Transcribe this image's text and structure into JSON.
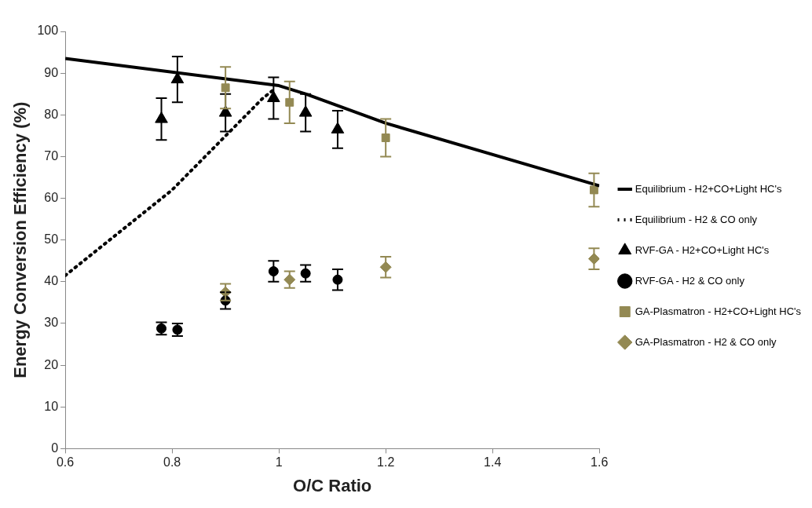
{
  "chart_data": {
    "type": "scatter",
    "xlabel": "O/C Ratio",
    "ylabel": "Energy Conversion Efficiency (%)",
    "xlim": [
      0.6,
      1.6
    ],
    "xticks": [
      {
        "value": 0.6,
        "label": "0.6"
      },
      {
        "value": 0.8,
        "label": "0.8"
      },
      {
        "value": 1,
        "label": "1"
      },
      {
        "value": 1.2,
        "label": "1.2"
      },
      {
        "value": 1.4,
        "label": "1.4"
      },
      {
        "value": 1.6,
        "label": "1.6"
      }
    ],
    "ylim": [
      0,
      100
    ],
    "yticks": [
      0,
      10,
      20,
      30,
      40,
      50,
      60,
      70,
      80,
      90,
      100
    ],
    "grid": false,
    "legend": "right",
    "series": [
      {
        "name": "Equilibrium - H2+CO+Light HC's",
        "type": "line",
        "color": "#000000",
        "marker": "none",
        "line_style": "solid",
        "x": [
          0.6,
          1.0,
          1.05,
          1.2,
          1.6
        ],
        "values": [
          93.5,
          87,
          85,
          78,
          63
        ]
      },
      {
        "name": "Equilibrium - H2 & CO only",
        "type": "line",
        "color": "#000000",
        "marker": "none",
        "line_style": "dotted",
        "x": [
          0.6,
          0.8,
          0.97,
          0.99
        ],
        "values": [
          41.5,
          62,
          84,
          86
        ]
      },
      {
        "name": "RVF-GA - H2+CO+Light HC's",
        "type": "scatter",
        "color": "#000000",
        "marker": "triangle",
        "x": [
          0.78,
          0.81,
          0.9,
          0.99,
          1.05,
          1.11
        ],
        "values": [
          79,
          88.5,
          80.5,
          84,
          80.5,
          76.5
        ],
        "errors": [
          5,
          5.5,
          4.5,
          5,
          4.5,
          4.5
        ]
      },
      {
        "name": "RVF-GA - H2 & CO only",
        "type": "scatter",
        "color": "#000000",
        "marker": "circle",
        "x": [
          0.78,
          0.81,
          0.9,
          0.99,
          1.05,
          1.11
        ],
        "values": [
          28.8,
          28.5,
          35.5,
          42.5,
          42,
          40.5
        ],
        "errors": [
          1.5,
          1.5,
          2,
          2.5,
          2,
          2.5
        ]
      },
      {
        "name": "GA-Plasmatron - H2+CO+Light HC's",
        "type": "scatter",
        "color": "#938953",
        "marker": "square",
        "x": [
          0.9,
          1.02,
          1.2,
          1.59
        ],
        "values": [
          86.5,
          83,
          74.5,
          62
        ],
        "errors": [
          5,
          5,
          4.5,
          4
        ]
      },
      {
        "name": "GA-Plasmatron - H2 & CO only",
        "type": "scatter",
        "color": "#938953",
        "marker": "diamond",
        "x": [
          0.9,
          1.02,
          1.2,
          1.59
        ],
        "values": [
          37.5,
          40.5,
          43.5,
          45.5
        ],
        "errors": [
          2,
          2,
          2.5,
          2.5
        ]
      }
    ]
  }
}
